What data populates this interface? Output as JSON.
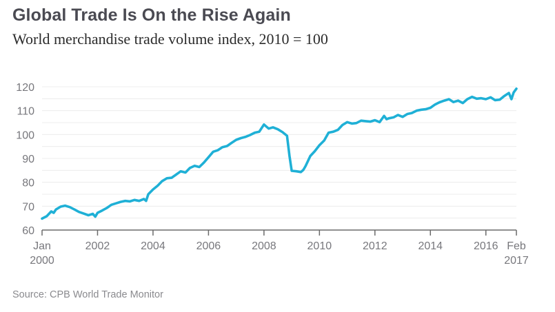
{
  "header": {
    "title": "Global Trade Is On the Rise Again",
    "subtitle": "World merchandise trade volume index, 2010 = 100"
  },
  "footer": {
    "source": "Source: CPB World Trade Monitor"
  },
  "colors": {
    "line": "#1fb0d6",
    "title": "#4a4a52",
    "axis_text": "#77777c"
  },
  "chart_data": {
    "type": "line",
    "title": "Global Trade Is On the Rise Again",
    "subtitle": "World merchandise trade volume index, 2010 = 100",
    "xlabel": "",
    "ylabel": "",
    "xlim": [
      2000.0,
      2017.1
    ],
    "ylim": [
      60,
      120
    ],
    "grid": true,
    "y_ticks": [
      60,
      70,
      80,
      90,
      100,
      110,
      120
    ],
    "y_gridlines_every": 5,
    "x_ticks": [
      {
        "value": 2000.0,
        "label": [
          "Jan",
          "2000"
        ]
      },
      {
        "value": 2002.0,
        "label": [
          "2002"
        ]
      },
      {
        "value": 2004.0,
        "label": [
          "2004"
        ]
      },
      {
        "value": 2006.0,
        "label": [
          "2006"
        ]
      },
      {
        "value": 2008.0,
        "label": [
          "2008"
        ]
      },
      {
        "value": 2010.0,
        "label": [
          "2010"
        ]
      },
      {
        "value": 2012.0,
        "label": [
          "2012"
        ]
      },
      {
        "value": 2014.0,
        "label": [
          "2014"
        ]
      },
      {
        "value": 2016.0,
        "label": [
          "2016"
        ]
      },
      {
        "value": 2017.1,
        "label": [
          "Feb",
          "2017"
        ]
      }
    ],
    "series": [
      {
        "name": "World merchandise trade volume index",
        "x": [
          2000.0,
          2000.17,
          2000.33,
          2000.42,
          2000.5,
          2000.67,
          2000.83,
          2001.0,
          2001.17,
          2001.33,
          2001.5,
          2001.67,
          2001.83,
          2001.92,
          2002.0,
          2002.17,
          2002.33,
          2002.5,
          2002.67,
          2002.83,
          2003.0,
          2003.17,
          2003.33,
          2003.5,
          2003.67,
          2003.75,
          2003.83,
          2004.0,
          2004.17,
          2004.33,
          2004.5,
          2004.67,
          2004.83,
          2005.0,
          2005.17,
          2005.33,
          2005.5,
          2005.67,
          2005.83,
          2006.0,
          2006.17,
          2006.33,
          2006.5,
          2006.67,
          2006.83,
          2007.0,
          2007.17,
          2007.33,
          2007.5,
          2007.67,
          2007.83,
          2008.0,
          2008.17,
          2008.33,
          2008.5,
          2008.67,
          2008.83,
          2008.92,
          2009.0,
          2009.17,
          2009.33,
          2009.42,
          2009.5,
          2009.67,
          2009.83,
          2010.0,
          2010.17,
          2010.33,
          2010.5,
          2010.67,
          2010.83,
          2011.0,
          2011.17,
          2011.33,
          2011.5,
          2011.67,
          2011.83,
          2012.0,
          2012.17,
          2012.33,
          2012.42,
          2012.5,
          2012.67,
          2012.83,
          2013.0,
          2013.17,
          2013.33,
          2013.5,
          2013.67,
          2013.83,
          2014.0,
          2014.17,
          2014.33,
          2014.5,
          2014.67,
          2014.83,
          2015.0,
          2015.17,
          2015.33,
          2015.5,
          2015.67,
          2015.83,
          2016.0,
          2016.17,
          2016.33,
          2016.5,
          2016.67,
          2016.83,
          2016.92,
          2017.0,
          2017.1
        ],
        "values": [
          64.8,
          65.8,
          67.8,
          67.2,
          68.6,
          69.8,
          70.2,
          69.6,
          68.6,
          67.6,
          66.9,
          66.2,
          66.8,
          65.6,
          67.2,
          68.2,
          69.2,
          70.6,
          71.2,
          71.8,
          72.2,
          72.0,
          72.6,
          72.2,
          73.0,
          72.2,
          75.0,
          77.0,
          78.6,
          80.5,
          81.7,
          81.9,
          83.2,
          84.6,
          84.1,
          86.0,
          86.9,
          86.4,
          88.2,
          90.5,
          92.8,
          93.4,
          94.7,
          95.2,
          96.5,
          97.8,
          98.5,
          99.0,
          99.8,
          100.8,
          101.2,
          104.2,
          102.5,
          103.0,
          102.2,
          101.0,
          99.5,
          91.0,
          84.8,
          84.6,
          84.3,
          85.2,
          86.8,
          91.0,
          93.0,
          95.5,
          97.5,
          100.8,
          101.2,
          102.0,
          104.0,
          105.2,
          104.6,
          104.8,
          105.8,
          105.6,
          105.4,
          106.0,
          105.2,
          107.8,
          106.4,
          106.8,
          107.2,
          108.2,
          107.4,
          108.6,
          109.0,
          110.0,
          110.4,
          110.6,
          111.2,
          112.6,
          113.5,
          114.2,
          114.8,
          113.6,
          114.2,
          113.2,
          114.8,
          115.8,
          115.0,
          115.2,
          114.8,
          115.6,
          114.4,
          114.6,
          116.2,
          117.4,
          114.8,
          117.6,
          119.2
        ]
      }
    ]
  }
}
